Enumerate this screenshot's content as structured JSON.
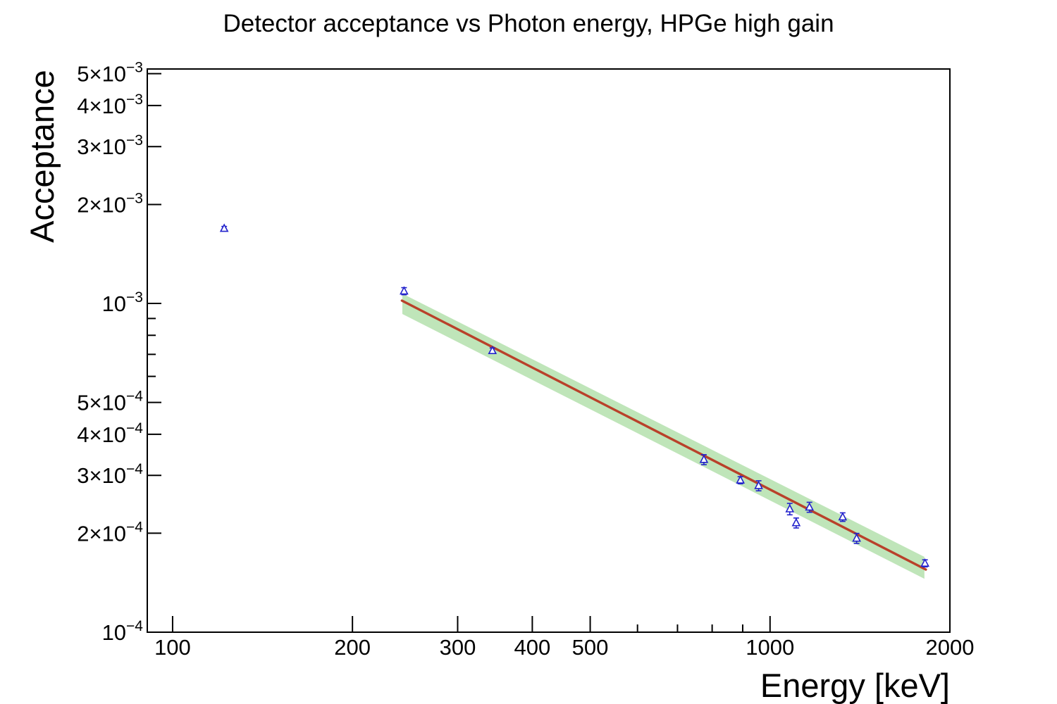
{
  "title": "Detector acceptance vs Photon energy, HPGe high gain",
  "colors": {
    "marker": "#2222cc",
    "fit_line": "#b9412a",
    "band": "#bfe5b9",
    "axis": "#000000",
    "background": "#ffffff"
  },
  "chart_data": {
    "type": "scatter",
    "title": "Detector acceptance vs Photon energy, HPGe high gain",
    "xlabel": "Energy [keV]",
    "ylabel": "Acceptance",
    "x_scale": "log",
    "y_scale": "log",
    "xlim": [
      90.7,
      2000
    ],
    "ylim": [
      0.0001,
      0.005166
    ],
    "grid": false,
    "legend": "none",
    "x_ticks": [
      {
        "v": 100,
        "t": "100"
      },
      {
        "v": 200,
        "t": "200"
      },
      {
        "v": 300,
        "t": "300"
      },
      {
        "v": 400,
        "t": "400"
      },
      {
        "v": 500,
        "t": "500"
      },
      {
        "v": 1000,
        "t": "1000"
      },
      {
        "v": 2000,
        "t": "2000"
      }
    ],
    "x_ticks_minor": [
      600,
      700,
      800,
      900
    ],
    "y_ticks": [
      {
        "v": 0.005,
        "b": "5×10",
        "e": "−3"
      },
      {
        "v": 0.004,
        "b": "4×10",
        "e": "−3"
      },
      {
        "v": 0.003,
        "b": "3×10",
        "e": "−3"
      },
      {
        "v": 0.002,
        "b": "2×10",
        "e": "−3"
      },
      {
        "v": 0.001,
        "b": "10",
        "e": "−3"
      },
      {
        "v": 0.0005,
        "b": "5×10",
        "e": "−4"
      },
      {
        "v": 0.0004,
        "b": "4×10",
        "e": "−4"
      },
      {
        "v": 0.0003,
        "b": "3×10",
        "e": "−4"
      },
      {
        "v": 0.0002,
        "b": "2×10",
        "e": "−4"
      },
      {
        "v": 0.0001,
        "b": "10",
        "e": "−4"
      }
    ],
    "y_ticks_minor": [
      0.0009,
      0.0008,
      0.0007,
      0.0006
    ],
    "series": [
      {
        "name": "acceptance-data",
        "marker": "open-triangle-up",
        "points": [
          {
            "x": 122,
            "y": 0.00169,
            "ey": 2.5e-05
          },
          {
            "x": 244,
            "y": 0.00109,
            "ey": 2.7e-05
          },
          {
            "x": 343,
            "y": 0.000718,
            "ey": 1.4e-05
          },
          {
            "x": 775,
            "y": 0.000335,
            "ey": 1.17e-05
          },
          {
            "x": 892,
            "y": 0.00029,
            "ey": 7.2e-06
          },
          {
            "x": 957,
            "y": 0.000279,
            "ey": 9.8e-06
          },
          {
            "x": 1079,
            "y": 0.000237,
            "ey": 9.5e-06
          },
          {
            "x": 1106,
            "y": 0.000215,
            "ey": 7.5e-06
          },
          {
            "x": 1164,
            "y": 0.00024,
            "ey": 8.4e-06
          },
          {
            "x": 1323,
            "y": 0.000224,
            "ey": 6.7e-06
          },
          {
            "x": 1396,
            "y": 0.000193,
            "ey": 6.8e-06
          },
          {
            "x": 1817,
            "y": 0.000162,
            "ey": 4e-06
          }
        ]
      },
      {
        "name": "power-law-fit",
        "type": "line",
        "x": [
          242,
          1823
        ],
        "y": [
          0.00102,
          0.0001551
        ],
        "power_index": -0.93
      },
      {
        "name": "fit-confidence-band",
        "type": "band",
        "x": [
          242.4,
          1813
        ],
        "upper": [
          0.001071,
          0.0001695
        ],
        "lower": [
          0.000929,
          0.0001454
        ]
      }
    ]
  }
}
